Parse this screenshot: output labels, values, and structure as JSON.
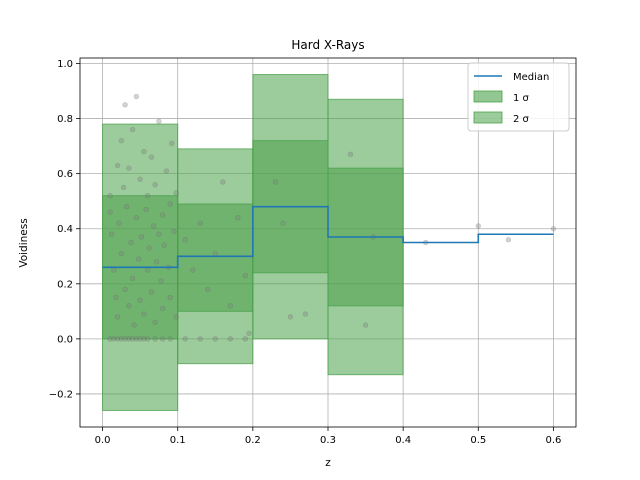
{
  "chart_data": {
    "type": "histogram-step-band",
    "title": "Hard X-Rays",
    "xlabel": "z",
    "ylabel": "Voidiness",
    "xlim": [
      -0.03,
      0.63
    ],
    "ylim": [
      -0.32,
      1.02
    ],
    "grid": true,
    "legend_position": "top-right",
    "xticks": [
      "0.0",
      "0.1",
      "0.2",
      "0.3",
      "0.4",
      "0.5",
      "0.6"
    ],
    "yticks": [
      "−0.2",
      "0.0",
      "0.2",
      "0.4",
      "0.6",
      "0.8",
      "1.0"
    ],
    "bin_edges": [
      0.0,
      0.1,
      0.2,
      0.3,
      0.4,
      0.5,
      0.6
    ],
    "series": [
      {
        "name": "Median",
        "type": "step",
        "color": "#1f77b4",
        "values": [
          0.26,
          0.3,
          0.48,
          0.37,
          0.35,
          0.38
        ]
      },
      {
        "name": "1 σ",
        "type": "band",
        "color": "#4aa04a",
        "lower": [
          0.0,
          0.1,
          0.24,
          0.12,
          null,
          null
        ],
        "upper": [
          0.52,
          0.49,
          0.72,
          0.62,
          null,
          null
        ]
      },
      {
        "name": "2 σ",
        "type": "band",
        "color": "#4aa04a",
        "lower": [
          -0.26,
          -0.09,
          0.0,
          -0.13,
          null,
          null
        ],
        "upper": [
          0.78,
          0.69,
          0.96,
          0.87,
          null,
          null
        ]
      }
    ],
    "points": {
      "color": "#808080",
      "xy": [
        [
          0.01,
          0.0
        ],
        [
          0.015,
          0.0
        ],
        [
          0.02,
          0.0
        ],
        [
          0.025,
          0.0
        ],
        [
          0.03,
          0.0
        ],
        [
          0.035,
          0.0
        ],
        [
          0.04,
          0.0
        ],
        [
          0.045,
          0.0
        ],
        [
          0.05,
          0.0
        ],
        [
          0.055,
          0.0
        ],
        [
          0.06,
          0.0
        ],
        [
          0.07,
          0.0
        ],
        [
          0.08,
          0.0
        ],
        [
          0.09,
          0.0
        ],
        [
          0.11,
          0.0
        ],
        [
          0.13,
          0.0
        ],
        [
          0.15,
          0.0
        ],
        [
          0.17,
          0.0
        ],
        [
          0.19,
          0.0
        ],
        [
          0.01,
          0.52
        ],
        [
          0.01,
          0.46
        ],
        [
          0.012,
          0.38
        ],
        [
          0.015,
          0.25
        ],
        [
          0.018,
          0.15
        ],
        [
          0.02,
          0.63
        ],
        [
          0.02,
          0.08
        ],
        [
          0.022,
          0.42
        ],
        [
          0.025,
          0.72
        ],
        [
          0.025,
          0.31
        ],
        [
          0.028,
          0.55
        ],
        [
          0.03,
          0.18
        ],
        [
          0.03,
          0.85
        ],
        [
          0.032,
          0.48
        ],
        [
          0.035,
          0.12
        ],
        [
          0.035,
          0.62
        ],
        [
          0.038,
          0.35
        ],
        [
          0.04,
          0.76
        ],
        [
          0.04,
          0.22
        ],
        [
          0.042,
          0.05
        ],
        [
          0.045,
          0.44
        ],
        [
          0.045,
          0.88
        ],
        [
          0.048,
          0.29
        ],
        [
          0.05,
          0.58
        ],
        [
          0.05,
          0.14
        ],
        [
          0.052,
          0.37
        ],
        [
          0.055,
          0.68
        ],
        [
          0.055,
          0.09
        ],
        [
          0.058,
          0.47
        ],
        [
          0.06,
          0.25
        ],
        [
          0.06,
          0.52
        ],
        [
          0.062,
          0.33
        ],
        [
          0.065,
          0.66
        ],
        [
          0.065,
          0.17
        ],
        [
          0.068,
          0.41
        ],
        [
          0.07,
          0.06
        ],
        [
          0.07,
          0.56
        ],
        [
          0.072,
          0.28
        ],
        [
          0.075,
          0.38
        ],
        [
          0.075,
          0.79
        ],
        [
          0.078,
          0.21
        ],
        [
          0.08,
          0.45
        ],
        [
          0.08,
          0.11
        ],
        [
          0.082,
          0.34
        ],
        [
          0.085,
          0.61
        ],
        [
          0.088,
          0.26
        ],
        [
          0.09,
          0.49
        ],
        [
          0.09,
          0.15
        ],
        [
          0.092,
          0.71
        ],
        [
          0.095,
          0.39
        ],
        [
          0.098,
          0.08
        ],
        [
          0.098,
          0.53
        ],
        [
          0.11,
          0.36
        ],
        [
          0.12,
          0.25
        ],
        [
          0.13,
          0.42
        ],
        [
          0.14,
          0.18
        ],
        [
          0.15,
          0.31
        ],
        [
          0.16,
          0.57
        ],
        [
          0.17,
          0.12
        ],
        [
          0.18,
          0.44
        ],
        [
          0.19,
          0.23
        ],
        [
          0.195,
          0.02
        ],
        [
          0.23,
          0.57
        ],
        [
          0.24,
          0.42
        ],
        [
          0.25,
          0.08
        ],
        [
          0.27,
          0.09
        ],
        [
          0.33,
          0.67
        ],
        [
          0.35,
          0.05
        ],
        [
          0.36,
          0.37
        ],
        [
          0.43,
          0.35
        ],
        [
          0.5,
          0.41
        ],
        [
          0.54,
          0.36
        ],
        [
          0.6,
          0.4
        ]
      ]
    }
  }
}
